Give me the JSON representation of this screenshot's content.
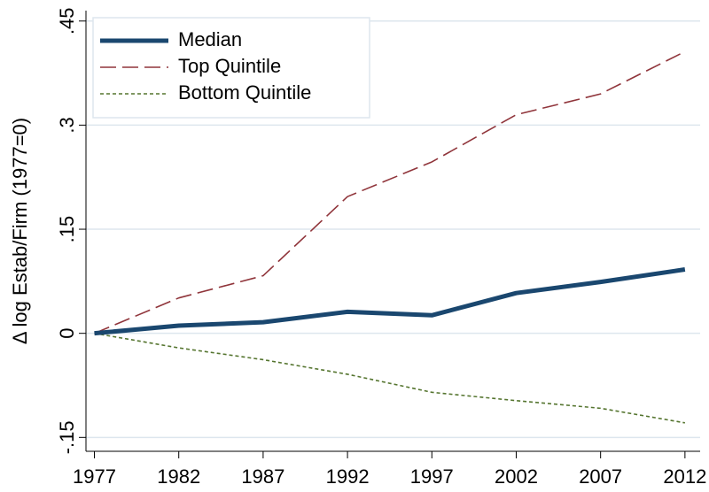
{
  "chart_data": {
    "type": "line",
    "y_label": "Δ log Estab/Firm (1977=0)",
    "x": [
      1977,
      1982,
      1987,
      1992,
      1997,
      2002,
      2007,
      2012
    ],
    "series": [
      {
        "name": "Median",
        "color": "#1a476f",
        "style": "solid",
        "values": [
          0,
          0.011,
          0.016,
          0.031,
          0.026,
          0.058,
          0.074,
          0.092
        ]
      },
      {
        "name": "Top Quintile",
        "color": "#90353b",
        "style": "dashed",
        "values": [
          0,
          0.051,
          0.083,
          0.197,
          0.247,
          0.315,
          0.345,
          0.406
        ]
      },
      {
        "name": "Bottom Quintile",
        "color": "#55752f",
        "style": "dotted",
        "values": [
          0,
          -0.021,
          -0.038,
          -0.059,
          -0.085,
          -0.097,
          -0.108,
          -0.129
        ]
      }
    ],
    "xlim": [
      1976.5,
      2012.9
    ],
    "xticks": [
      1977,
      1982,
      1987,
      1992,
      1997,
      2002,
      2007,
      2012
    ],
    "ylim": [
      -0.17,
      0.465
    ],
    "yticks": [
      {
        "value": -0.15,
        "label": "-.15"
      },
      0,
      {
        "value": 0.15,
        "label": ".15"
      },
      {
        "value": 0.3,
        "label": ".3"
      },
      {
        "value": 0.45,
        "label": ".45"
      }
    ],
    "grid": true,
    "legend": "top-left"
  }
}
